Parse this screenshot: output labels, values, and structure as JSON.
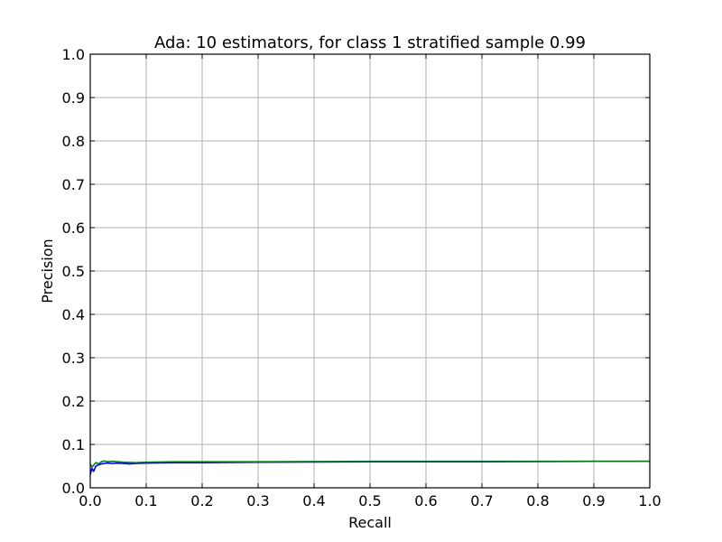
{
  "chart_data": {
    "type": "line",
    "title": "Ada: 10 estimators, for class 1 stratified sample 0.99",
    "xlabel": "Recall",
    "ylabel": "Precision",
    "xlim": [
      0.0,
      1.0
    ],
    "ylim": [
      0.0,
      1.0
    ],
    "grid": true,
    "xticks": [
      0.0,
      0.1,
      0.2,
      0.3,
      0.4,
      0.5,
      0.6,
      0.7,
      0.8,
      0.9,
      1.0
    ],
    "yticks": [
      0.0,
      0.1,
      0.2,
      0.3,
      0.4,
      0.5,
      0.6,
      0.7,
      0.8,
      0.9,
      1.0
    ],
    "xtick_labels": [
      "0.0",
      "0.1",
      "0.2",
      "0.3",
      "0.4",
      "0.5",
      "0.6",
      "0.7",
      "0.8",
      "0.9",
      "1.0"
    ],
    "ytick_labels": [
      "0.0",
      "0.1",
      "0.2",
      "0.3",
      "0.4",
      "0.5",
      "0.6",
      "0.7",
      "0.8",
      "0.9",
      "1.0"
    ],
    "series": [
      {
        "name": "blue",
        "color": "#0000ff",
        "x": [
          0.0,
          0.003,
          0.006,
          0.01,
          0.015,
          0.02,
          0.03,
          0.04,
          0.05,
          0.06,
          0.07,
          0.08,
          0.1,
          0.15,
          0.2,
          0.3,
          0.5,
          0.7,
          0.9,
          1.0
        ],
        "y": [
          0.03,
          0.045,
          0.038,
          0.05,
          0.053,
          0.055,
          0.057,
          0.056,
          0.057,
          0.056,
          0.055,
          0.056,
          0.057,
          0.058,
          0.058,
          0.059,
          0.06,
          0.06,
          0.061,
          0.061
        ]
      },
      {
        "name": "green",
        "color": "#008000",
        "x": [
          0.0,
          0.003,
          0.006,
          0.01,
          0.015,
          0.02,
          0.025,
          0.03,
          0.04,
          0.05,
          0.06,
          0.08,
          0.1,
          0.15,
          0.2,
          0.3,
          0.5,
          0.7,
          0.9,
          1.0
        ],
        "y": [
          0.055,
          0.048,
          0.052,
          0.058,
          0.055,
          0.06,
          0.062,
          0.06,
          0.061,
          0.06,
          0.059,
          0.058,
          0.059,
          0.06,
          0.06,
          0.06,
          0.061,
          0.061,
          0.061,
          0.061
        ]
      }
    ]
  }
}
